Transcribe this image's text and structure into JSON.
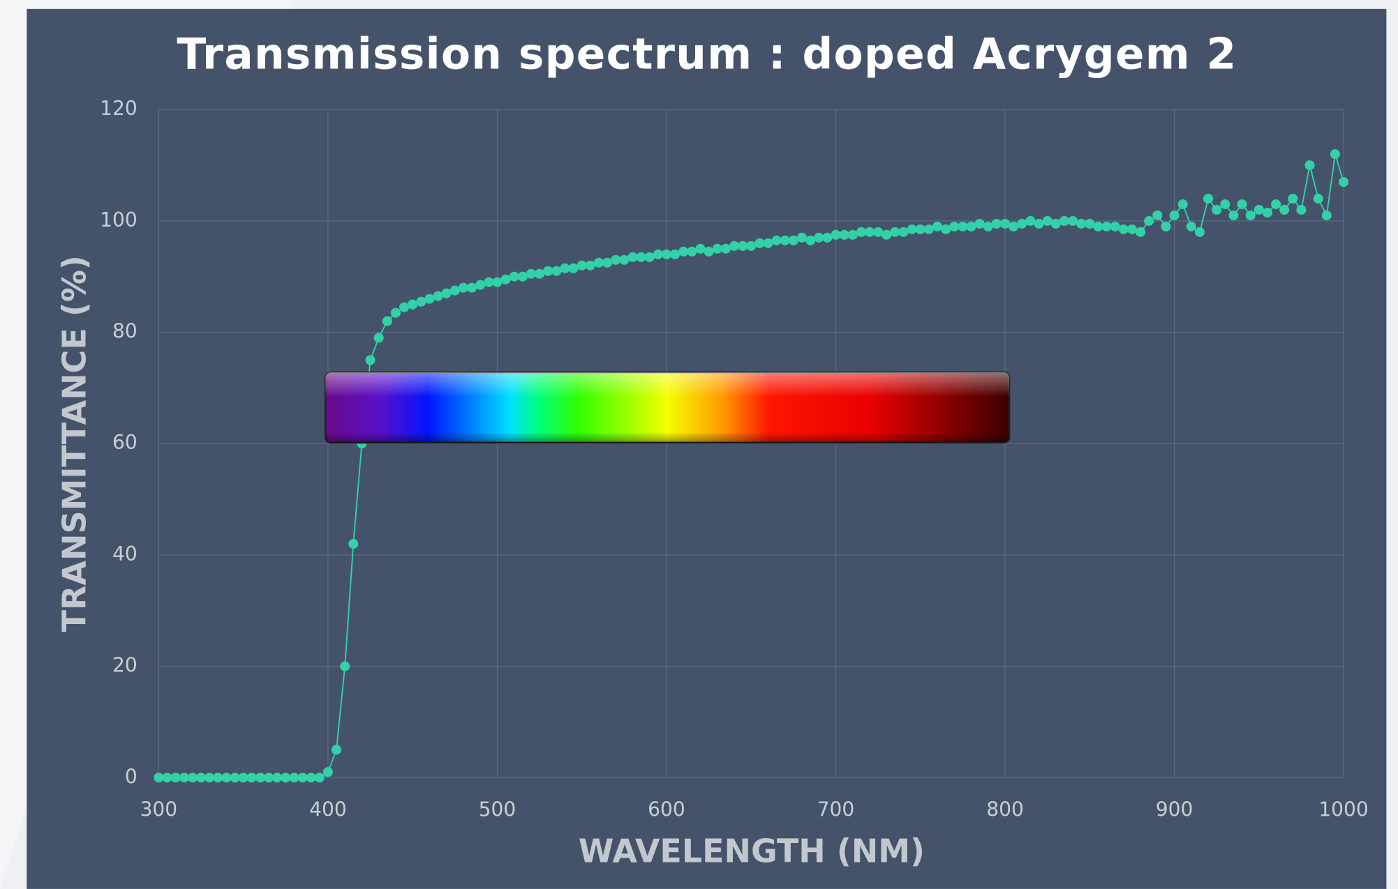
{
  "chart_data": {
    "type": "line",
    "title": "Transmission spectrum : doped Acrygem 2",
    "xlabel": "WAVELENGTH (NM)",
    "ylabel": "TRANSMITTANCE (%)",
    "xlim": [
      300,
      1000
    ],
    "xticks": [
      300,
      400,
      500,
      600,
      700,
      800,
      900,
      1000
    ],
    "ylim": [
      0,
      120
    ],
    "yticks": [
      0,
      20,
      40,
      60,
      80,
      100,
      120
    ],
    "grid": true,
    "x": [
      300,
      305,
      310,
      315,
      320,
      325,
      330,
      335,
      340,
      345,
      350,
      355,
      360,
      365,
      370,
      375,
      380,
      385,
      390,
      395,
      400,
      405,
      410,
      415,
      420,
      425,
      430,
      435,
      440,
      445,
      450,
      455,
      460,
      465,
      470,
      475,
      480,
      485,
      490,
      495,
      500,
      505,
      510,
      515,
      520,
      525,
      530,
      535,
      540,
      545,
      550,
      555,
      560,
      565,
      570,
      575,
      580,
      585,
      590,
      595,
      600,
      605,
      610,
      615,
      620,
      625,
      630,
      635,
      640,
      645,
      650,
      655,
      660,
      665,
      670,
      675,
      680,
      685,
      690,
      695,
      700,
      705,
      710,
      715,
      720,
      725,
      730,
      735,
      740,
      745,
      750,
      755,
      760,
      765,
      770,
      775,
      780,
      785,
      790,
      795,
      800,
      805,
      810,
      815,
      820,
      825,
      830,
      835,
      840,
      845,
      850,
      855,
      860,
      865,
      870,
      875,
      880,
      885,
      890,
      895,
      900,
      905,
      910,
      915,
      920,
      925,
      930,
      935,
      940,
      945,
      950,
      955,
      960,
      965,
      970,
      975,
      980,
      985,
      990,
      995,
      1000
    ],
    "series": [
      {
        "color": "#33d1a8",
        "values": [
          0,
          0,
          0,
          0,
          0,
          0,
          0,
          0,
          0,
          0,
          0,
          0,
          0,
          0,
          0,
          0,
          0,
          0,
          0,
          0,
          1,
          5,
          20,
          42,
          60,
          75,
          79,
          82,
          83.5,
          84.5,
          85,
          85.5,
          86,
          86.5,
          87,
          87.5,
          88,
          88,
          88.5,
          89,
          89,
          89.5,
          90,
          90,
          90.5,
          90.5,
          91,
          91,
          91.5,
          91.5,
          92,
          92,
          92.5,
          92.5,
          93,
          93,
          93.5,
          93.5,
          93.5,
          94,
          94,
          94,
          94.5,
          94.5,
          95,
          94.5,
          95,
          95,
          95.5,
          95.5,
          95.5,
          96,
          96,
          96.5,
          96.5,
          96.5,
          97,
          96.5,
          97,
          97,
          97.5,
          97.5,
          97.5,
          98,
          98,
          98,
          97.5,
          98,
          98,
          98.5,
          98.5,
          98.5,
          99,
          98.5,
          99,
          99,
          99,
          99.5,
          99,
          99.5,
          99.5,
          99,
          99.5,
          100,
          99.5,
          100,
          99.5,
          100,
          100,
          99.5,
          99.5,
          99,
          99,
          99,
          98.5,
          98.5,
          98,
          100,
          101,
          99,
          101,
          103,
          99,
          98,
          104,
          102,
          103,
          101,
          103,
          101,
          102,
          101.5,
          103,
          102,
          104,
          102,
          110,
          104,
          101,
          112,
          107
        ]
      }
    ]
  }
}
